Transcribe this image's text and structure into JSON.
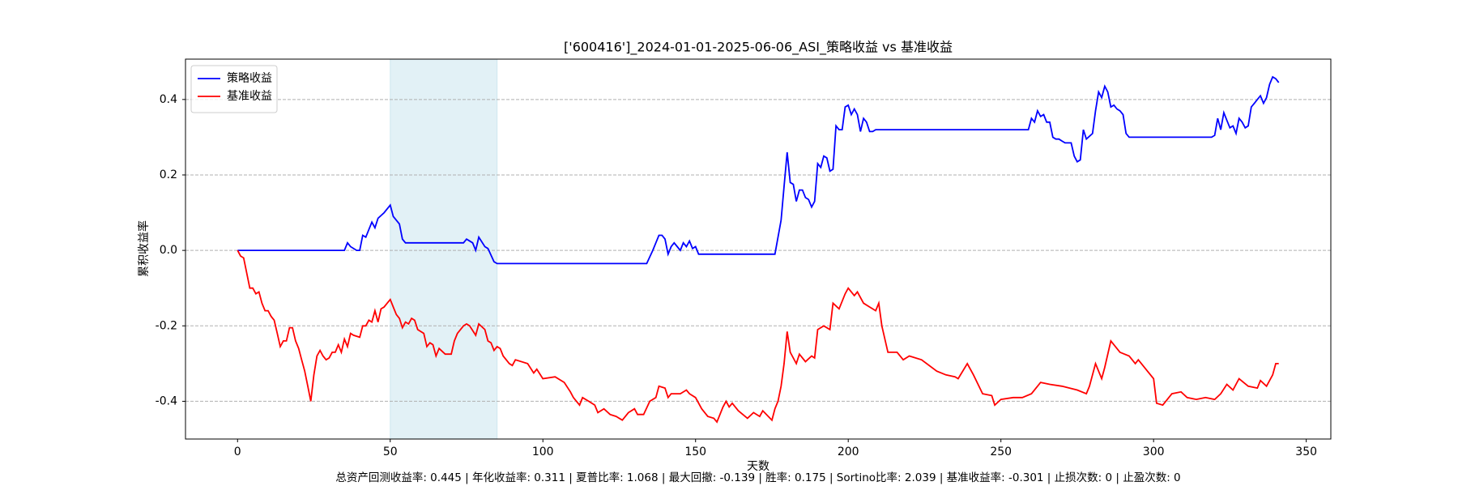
{
  "chart_data": {
    "type": "line",
    "title": "['600416']_2024-01-01-2025-06-06_ASI_策略收益 vs 基准收益",
    "xlabel": "天数",
    "ylabel": "累积收益率",
    "footer": "总资产回测收益率: 0.445 | 年化收益率: 0.311 | 夏普比率: 1.068 | 最大回撤: -0.139 | 胜率: 0.175 | Sortino比率: 2.039 | 基准收益率: -0.301 | 止损次数: 0 | 止盈次数: 0",
    "xlim": [
      -17.05,
      358.05
    ],
    "ylim": [
      -0.5,
      0.507
    ],
    "xticks": [
      0,
      50,
      100,
      150,
      200,
      250,
      300,
      350
    ],
    "yticks": [
      -0.4,
      -0.2,
      {
        "value": 0,
        "label": "0.0"
      },
      0.2,
      0.4
    ],
    "grid": "y",
    "legend": "upper left",
    "shade_x": [
      50,
      85
    ],
    "shade_color": "#add8e6",
    "series": [
      {
        "name": "策略收益",
        "color": "#0000ff",
        "x": [
          0,
          35,
          36,
          37,
          39,
          40,
          41,
          42,
          44,
          45,
          46,
          48,
          50,
          51,
          53,
          54,
          55,
          74,
          75,
          77,
          78,
          79,
          81,
          82,
          84,
          85,
          134,
          136,
          137,
          138,
          139,
          140,
          141,
          142,
          143,
          144,
          145,
          146,
          147,
          148,
          149,
          150,
          151,
          176,
          178,
          179,
          180,
          181,
          182,
          183,
          184,
          185,
          186,
          187,
          188,
          189,
          190,
          191,
          192,
          193,
          194,
          195,
          196,
          197,
          198,
          199,
          200,
          201,
          202,
          203,
          204,
          205,
          206,
          207,
          208,
          209,
          259,
          260,
          261,
          262,
          263,
          264,
          265,
          266,
          267,
          268,
          269,
          270,
          271,
          273,
          274,
          275,
          276,
          277,
          278,
          280,
          281,
          282,
          283,
          284,
          285,
          286,
          287,
          288,
          289,
          290,
          291,
          292,
          319,
          320,
          321,
          322,
          323,
          324,
          325,
          326,
          327,
          328,
          329,
          330,
          331,
          332,
          333,
          334,
          335,
          336,
          337,
          338,
          339,
          340,
          341
        ],
        "values": [
          0,
          0,
          0.02,
          0.01,
          0,
          0,
          0.04,
          0.035,
          0.075,
          0.06,
          0.085,
          0.1,
          0.12,
          0.09,
          0.07,
          0.03,
          0.02,
          0.02,
          0.03,
          0.02,
          0,
          0.035,
          0.01,
          0.005,
          -0.03,
          -0.035,
          -0.035,
          0,
          0.02,
          0.04,
          0.04,
          0.03,
          -0.01,
          0.01,
          0.02,
          0.01,
          0,
          0.02,
          0.01,
          0.025,
          0.005,
          0.01,
          -0.01,
          -0.01,
          0.08,
          0.17,
          0.26,
          0.18,
          0.175,
          0.13,
          0.16,
          0.16,
          0.14,
          0.135,
          0.115,
          0.13,
          0.23,
          0.22,
          0.25,
          0.245,
          0.21,
          0.215,
          0.33,
          0.32,
          0.32,
          0.38,
          0.385,
          0.36,
          0.375,
          0.36,
          0.315,
          0.35,
          0.34,
          0.315,
          0.315,
          0.32,
          0.32,
          0.35,
          0.34,
          0.37,
          0.355,
          0.36,
          0.34,
          0.34,
          0.3,
          0.295,
          0.295,
          0.29,
          0.285,
          0.285,
          0.25,
          0.235,
          0.24,
          0.32,
          0.295,
          0.31,
          0.37,
          0.42,
          0.405,
          0.435,
          0.42,
          0.38,
          0.385,
          0.375,
          0.37,
          0.36,
          0.31,
          0.3,
          0.3,
          0.305,
          0.35,
          0.32,
          0.365,
          0.345,
          0.325,
          0.33,
          0.31,
          0.35,
          0.34,
          0.325,
          0.33,
          0.38,
          0.39,
          0.4,
          0.41,
          0.39,
          0.405,
          0.44,
          0.46,
          0.455,
          0.445
        ]
      },
      {
        "name": "基准收益",
        "color": "#ff0000",
        "x": [
          0,
          1,
          2,
          3,
          4,
          5,
          6,
          7,
          8,
          9,
          10,
          11,
          12,
          13,
          14,
          15,
          16,
          17,
          18,
          19,
          20,
          21,
          22,
          23,
          24,
          25,
          26,
          27,
          28,
          29,
          30,
          31,
          32,
          33,
          34,
          35,
          36,
          37,
          38,
          40,
          41,
          42,
          43,
          44,
          45,
          46,
          47,
          48,
          49,
          50,
          51,
          52,
          53,
          54,
          55,
          56,
          57,
          58,
          59,
          61,
          62,
          63,
          64,
          65,
          66,
          68,
          70,
          71,
          72,
          74,
          75,
          76,
          78,
          79,
          81,
          82,
          83,
          84,
          85,
          86,
          87,
          89,
          90,
          91,
          95,
          97,
          98,
          100,
          104,
          107,
          109,
          110,
          112,
          113,
          115,
          117,
          118,
          120,
          122,
          124,
          126,
          128,
          130,
          131,
          133,
          135,
          137,
          138,
          140,
          141,
          142,
          145,
          147,
          148,
          150,
          152,
          154,
          156,
          157,
          159,
          160,
          161,
          162,
          164,
          167,
          169,
          171,
          172,
          175,
          176,
          177,
          178,
          179,
          180,
          181,
          183,
          184,
          186,
          188,
          189,
          190,
          192,
          194,
          195,
          197,
          199,
          200,
          202,
          203,
          205,
          207,
          209,
          210,
          211,
          213,
          216,
          218,
          220,
          224,
          229,
          232,
          235,
          236,
          239,
          241,
          244,
          247,
          248,
          250,
          254,
          257,
          260,
          263,
          266,
          270,
          275,
          278,
          279,
          281,
          283,
          284,
          286,
          289,
          292,
          294,
          295,
          298,
          300,
          301,
          303,
          306,
          309,
          311,
          314,
          317,
          320,
          322,
          324,
          326,
          328,
          331,
          334,
          335,
          337,
          339,
          340,
          341
        ],
        "values": [
          0,
          -0.015,
          -0.02,
          -0.06,
          -0.1,
          -0.1,
          -0.115,
          -0.11,
          -0.14,
          -0.16,
          -0.16,
          -0.175,
          -0.185,
          -0.22,
          -0.255,
          -0.24,
          -0.24,
          -0.205,
          -0.205,
          -0.24,
          -0.26,
          -0.29,
          -0.32,
          -0.36,
          -0.4,
          -0.33,
          -0.28,
          -0.265,
          -0.28,
          -0.29,
          -0.285,
          -0.27,
          -0.27,
          -0.25,
          -0.27,
          -0.235,
          -0.255,
          -0.22,
          -0.225,
          -0.23,
          -0.2,
          -0.2,
          -0.185,
          -0.19,
          -0.16,
          -0.19,
          -0.155,
          -0.15,
          -0.14,
          -0.13,
          -0.15,
          -0.17,
          -0.18,
          -0.205,
          -0.19,
          -0.195,
          -0.18,
          -0.185,
          -0.21,
          -0.22,
          -0.255,
          -0.245,
          -0.25,
          -0.28,
          -0.26,
          -0.275,
          -0.275,
          -0.24,
          -0.22,
          -0.2,
          -0.195,
          -0.2,
          -0.225,
          -0.195,
          -0.21,
          -0.24,
          -0.245,
          -0.265,
          -0.255,
          -0.26,
          -0.28,
          -0.3,
          -0.305,
          -0.29,
          -0.3,
          -0.325,
          -0.315,
          -0.34,
          -0.335,
          -0.35,
          -0.375,
          -0.39,
          -0.41,
          -0.39,
          -0.4,
          -0.41,
          -0.43,
          -0.42,
          -0.435,
          -0.44,
          -0.45,
          -0.43,
          -0.42,
          -0.435,
          -0.435,
          -0.4,
          -0.39,
          -0.36,
          -0.365,
          -0.39,
          -0.38,
          -0.38,
          -0.37,
          -0.38,
          -0.39,
          -0.42,
          -0.44,
          -0.445,
          -0.455,
          -0.415,
          -0.4,
          -0.415,
          -0.405,
          -0.425,
          -0.445,
          -0.43,
          -0.44,
          -0.425,
          -0.45,
          -0.42,
          -0.4,
          -0.36,
          -0.3,
          -0.215,
          -0.27,
          -0.3,
          -0.275,
          -0.295,
          -0.28,
          -0.285,
          -0.21,
          -0.2,
          -0.21,
          -0.14,
          -0.155,
          -0.115,
          -0.1,
          -0.12,
          -0.11,
          -0.14,
          -0.15,
          -0.16,
          -0.14,
          -0.2,
          -0.27,
          -0.27,
          -0.29,
          -0.28,
          -0.29,
          -0.32,
          -0.33,
          -0.335,
          -0.34,
          -0.3,
          -0.33,
          -0.38,
          -0.385,
          -0.41,
          -0.395,
          -0.39,
          -0.39,
          -0.38,
          -0.35,
          -0.355,
          -0.36,
          -0.37,
          -0.38,
          -0.36,
          -0.3,
          -0.34,
          -0.31,
          -0.24,
          -0.27,
          -0.28,
          -0.3,
          -0.29,
          -0.32,
          -0.34,
          -0.405,
          -0.41,
          -0.38,
          -0.375,
          -0.39,
          -0.395,
          -0.39,
          -0.395,
          -0.38,
          -0.355,
          -0.37,
          -0.34,
          -0.36,
          -0.365,
          -0.345,
          -0.36,
          -0.33,
          -0.3,
          -0.3
        ]
      }
    ]
  }
}
